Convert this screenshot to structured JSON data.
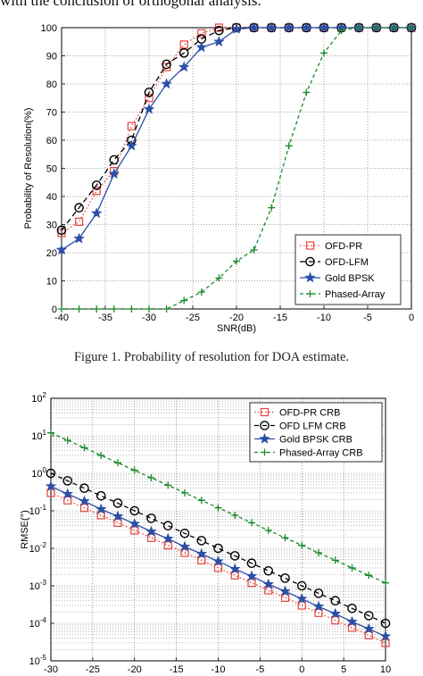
{
  "page": {
    "top_text": "with the conclusion of orthogonal analysis.",
    "caption1": "Figure 1. Probability of resolution for DOA estimate."
  },
  "chart_data": [
    {
      "type": "line",
      "title": "",
      "xlabel": "SNR(dB)",
      "ylabel": "Probability of Resolution(%)",
      "xlim": [
        -40,
        0
      ],
      "ylim": [
        0,
        100
      ],
      "xticks": [
        -40,
        -35,
        -30,
        -25,
        -20,
        -15,
        -10,
        -5,
        0
      ],
      "yticks": [
        0,
        10,
        20,
        30,
        40,
        50,
        60,
        70,
        80,
        90,
        100
      ],
      "grid": true,
      "legend": "bottom-right",
      "x": [
        -40,
        -38,
        -36,
        -34,
        -32,
        -30,
        -28,
        -26,
        -24,
        -22,
        -20,
        -18,
        -16,
        -14,
        -12,
        -10,
        -8,
        -6,
        -4,
        -2,
        0
      ],
      "series": [
        {
          "name": "OFD-PR",
          "color": "#e8453c",
          "dash": "1.5,2.5",
          "marker": "square",
          "values": [
            27,
            31,
            42,
            49,
            65,
            75,
            86,
            94,
            98,
            100,
            100,
            100,
            100,
            100,
            100,
            100,
            100,
            100,
            100,
            100,
            100
          ]
        },
        {
          "name": "OFD-LFM",
          "color": "#000000",
          "dash": "6,4",
          "marker": "circle",
          "values": [
            28,
            36,
            44,
            53,
            60,
            77,
            87,
            91,
            96,
            99,
            100,
            100,
            100,
            100,
            100,
            100,
            100,
            100,
            100,
            100,
            100
          ]
        },
        {
          "name": "Gold BPSK",
          "color": "#2a4fa6",
          "dash": "",
          "marker": "star",
          "values": [
            21,
            25,
            34,
            48,
            58,
            71,
            80,
            86,
            93,
            95,
            99.5,
            100,
            100,
            100,
            100,
            100,
            100,
            100,
            100,
            100,
            100
          ]
        },
        {
          "name": "Phased-Array",
          "color": "#1a8a2a",
          "dash": "4,3",
          "marker": "plus",
          "values": [
            0,
            0,
            0,
            0,
            0,
            0,
            0,
            3,
            6,
            11,
            17,
            21,
            36,
            58,
            77,
            91,
            99,
            100,
            100,
            100,
            100
          ]
        }
      ]
    },
    {
      "type": "line",
      "title": "",
      "xlabel": "",
      "ylabel": "RMSE(°)",
      "xlim": [
        -30,
        10
      ],
      "ylim": [
        1e-05,
        100
      ],
      "yscale": "log",
      "xticks": [
        -30,
        -25,
        -20,
        -15,
        -10,
        -5,
        0,
        5,
        10
      ],
      "yticks": [
        1e-05,
        0.0001,
        0.001,
        0.01,
        0.1,
        1,
        10,
        100
      ],
      "grid": true,
      "legend": "top-right",
      "x": [
        -30,
        -28,
        -26,
        -24,
        -22,
        -20,
        -18,
        -16,
        -14,
        -12,
        -10,
        -8,
        -6,
        -4,
        -2,
        0,
        2,
        4,
        6,
        8,
        10
      ],
      "series": [
        {
          "name": "OFD-PR CRB",
          "color": "#e8453c",
          "dash": "1.5,2.5",
          "marker": "square",
          "values": [
            0.3,
            0.19,
            0.12,
            0.076,
            0.048,
            0.03,
            0.019,
            0.012,
            0.0076,
            0.0048,
            0.003,
            0.0019,
            0.0012,
            0.00076,
            0.00048,
            0.0003,
            0.00019,
            0.00012,
            7.6e-05,
            4.8e-05,
            3e-05
          ]
        },
        {
          "name": "OFD LFM CRB",
          "color": "#000000",
          "dash": "5,4",
          "marker": "circle",
          "values": [
            1.0,
            0.63,
            0.4,
            0.25,
            0.16,
            0.1,
            0.063,
            0.04,
            0.025,
            0.016,
            0.01,
            0.0063,
            0.004,
            0.0025,
            0.0016,
            0.001,
            0.00063,
            0.0004,
            0.00025,
            0.00016,
            0.0001
          ]
        },
        {
          "name": "Gold BPSK CRB",
          "color": "#2a4fa6",
          "dash": "",
          "marker": "star",
          "values": [
            0.45,
            0.28,
            0.18,
            0.11,
            0.071,
            0.045,
            0.028,
            0.018,
            0.011,
            0.0071,
            0.0045,
            0.0028,
            0.0018,
            0.0011,
            0.00071,
            0.00045,
            0.00028,
            0.00018,
            0.00011,
            7.1e-05,
            4.5e-05
          ]
        },
        {
          "name": "Phased-Array CRB",
          "color": "#1a8a2a",
          "dash": "4,3",
          "marker": "plus",
          "values": [
            12,
            7.6,
            4.8,
            3.0,
            1.9,
            1.2,
            0.76,
            0.48,
            0.3,
            0.19,
            0.12,
            0.076,
            0.048,
            0.03,
            0.019,
            0.012,
            0.0076,
            0.0048,
            0.003,
            0.0019,
            0.0012
          ]
        }
      ]
    }
  ]
}
